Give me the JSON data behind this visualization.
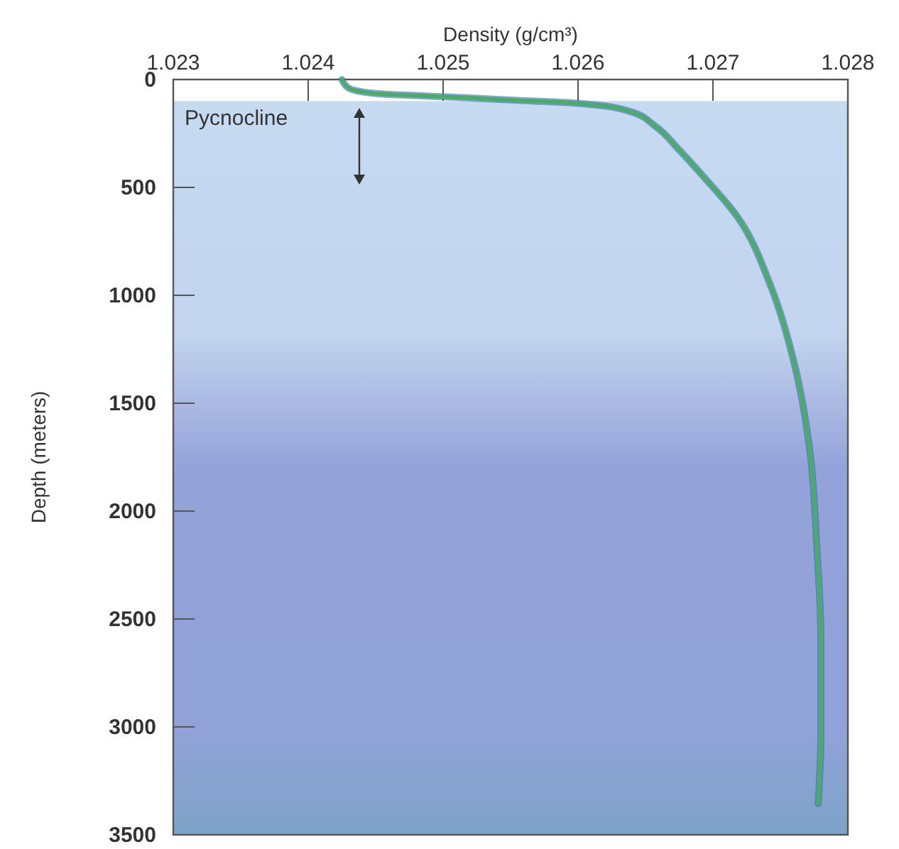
{
  "chart_data": {
    "type": "line",
    "xlabel": "Density (g/cm³)",
    "ylabel": "Depth (meters)",
    "xlim": [
      1.023,
      1.028
    ],
    "xticks": [
      {
        "value": 1.023,
        "label": "1.023"
      },
      {
        "value": 1.024,
        "label": "1.024"
      },
      {
        "value": 1.025,
        "label": "1.025"
      },
      {
        "value": 1.026,
        "label": "1.026"
      },
      {
        "value": 1.027,
        "label": "1.027"
      },
      {
        "value": 1.028,
        "label": "1.028"
      }
    ],
    "ylim": [
      3500,
      0
    ],
    "yticks": [
      0,
      500,
      1000,
      1500,
      2000,
      2500,
      3000,
      3500
    ],
    "grid": false,
    "marker": "none",
    "line_style": "solid",
    "annotations": [
      "Pycnocline"
    ],
    "series": [
      {
        "color": "#4caa6c",
        "x": [
          1.02425,
          1.0243,
          1.0245,
          1.025,
          1.0255,
          1.026,
          1.02637,
          1.02658,
          1.02674,
          1.02693,
          1.02718,
          1.02743,
          1.02761,
          1.02772,
          1.02777,
          1.0278,
          1.0278,
          1.02778
        ],
        "values": [
          0,
          40,
          65,
          80,
          95,
          110,
          145,
          220,
          320,
          450,
          635,
          960,
          1335,
          1730,
          2165,
          2600,
          3040,
          3355
        ]
      }
    ]
  }
}
